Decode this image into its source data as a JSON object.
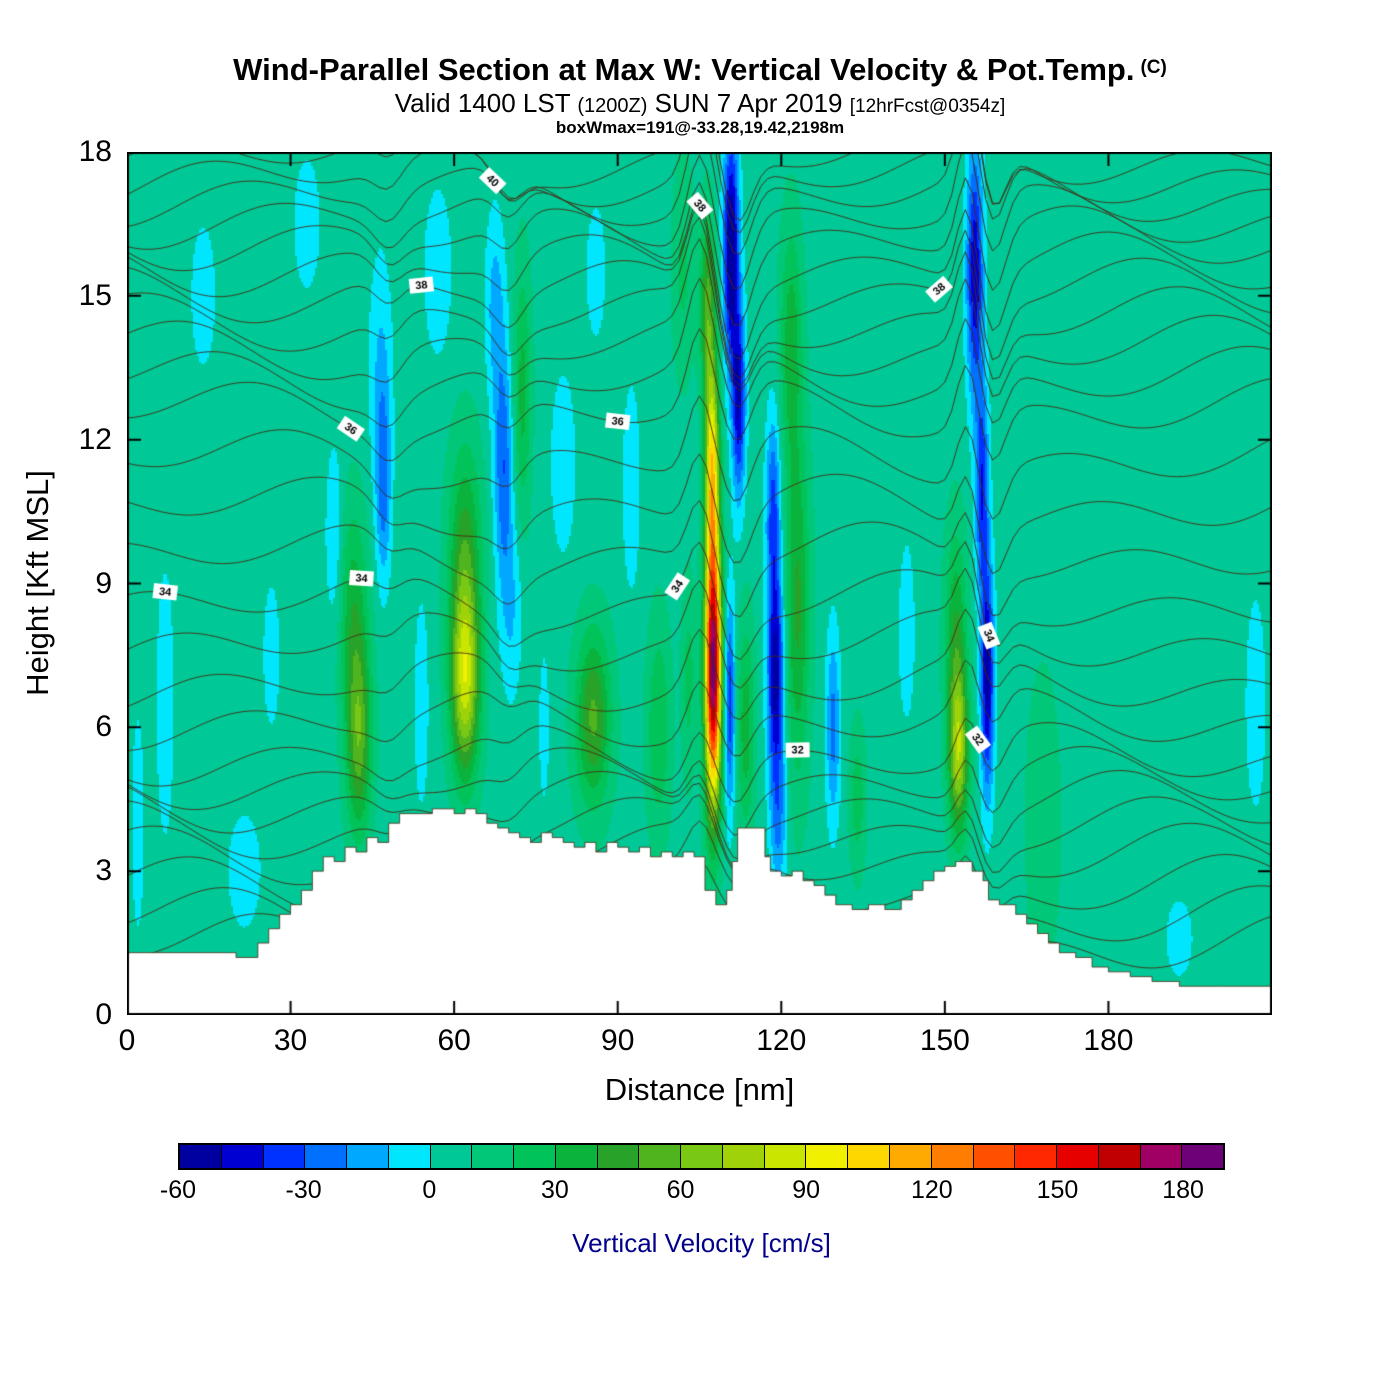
{
  "header": {
    "title": "Wind-Parallel Section at Max W: Vertical Velocity & Pot.Temp.",
    "title_suffix": "(C)",
    "subtitle_valid": "Valid 1400 LST",
    "subtitle_zulu": "(1200Z)",
    "subtitle_date": "SUN 7 Apr 2019",
    "subtitle_fcst": "[12hrFcst@0354z]",
    "annotation": "boxWmax=191@-33.28,19.42,2198m"
  },
  "axes": {
    "x": {
      "label": "Distance [nm]",
      "min": 0,
      "max": 210,
      "ticks": [
        0,
        30,
        60,
        90,
        120,
        150,
        180
      ]
    },
    "y": {
      "label": "Height [Kft MSL]",
      "min": 0,
      "max": 18,
      "ticks": [
        0,
        3,
        6,
        9,
        12,
        15,
        18
      ]
    }
  },
  "colorbar": {
    "label": "Vertical Velocity [cm/s]",
    "label_color": "#00008b",
    "min": -60,
    "max": 190,
    "step": 10,
    "tick_labels": [
      -60,
      -30,
      0,
      30,
      60,
      90,
      120,
      150,
      180
    ],
    "colors": [
      "#0000a0",
      "#0000d2",
      "#0032ff",
      "#0070ff",
      "#00a8ff",
      "#00e6ff",
      "#00c896",
      "#00c878",
      "#00c35a",
      "#0ab43c",
      "#28a228",
      "#50b41e",
      "#78c814",
      "#a0d20a",
      "#c8e600",
      "#f0f000",
      "#ffd700",
      "#ffaa00",
      "#ff7d00",
      "#ff5000",
      "#ff2800",
      "#e60000",
      "#c00000",
      "#a00064",
      "#6e0078"
    ]
  },
  "chart_data": {
    "type": "heatmap",
    "title": "Wind-Parallel Section at Max W: Vertical Velocity & Pot.Temp. (C)",
    "subtitle": "Valid 1400 LST (1200Z) SUN 7 Apr 2019 [12hrFcst@0354z]",
    "max_w_annotation": "boxWmax=191@-33.28,19.42,2198m",
    "xlabel": "Distance [nm]",
    "ylabel": "Height [Kft MSL]",
    "xlim": [
      0,
      210
    ],
    "ylim": [
      0,
      18
    ],
    "units": "cm/s",
    "fill_interval_cms": 10,
    "field": {
      "base": 6,
      "features": [
        {
          "a": 180,
          "x": 107.5,
          "z": 7.2,
          "sx": 1.5,
          "sz": 2.8
        },
        {
          "a": 90,
          "x": 107.3,
          "z": 11.5,
          "sx": 1.3,
          "sz": 2.2
        },
        {
          "a": 45,
          "x": 106.5,
          "z": 14.8,
          "sx": 1.4,
          "sz": 1.8
        },
        {
          "a": 50,
          "x": 42.5,
          "z": 5.8,
          "sx": 2.3,
          "sz": 2.0
        },
        {
          "a": 28,
          "x": 41.5,
          "z": 8.5,
          "sx": 2.6,
          "sz": 2.2
        },
        {
          "a": 78,
          "x": 62,
          "z": 7.0,
          "sx": 2.6,
          "sz": 2.0
        },
        {
          "a": 35,
          "x": 62,
          "z": 9.8,
          "sx": 3.0,
          "sz": 2.2
        },
        {
          "a": 46,
          "x": 85.5,
          "z": 6.2,
          "sx": 3.2,
          "sz": 1.8
        },
        {
          "a": 24,
          "x": 97.5,
          "z": 6.0,
          "sx": 2.2,
          "sz": 2.2
        },
        {
          "a": 18,
          "x": 103,
          "z": 7.0,
          "sx": 1.3,
          "sz": 2.0
        },
        {
          "a": 30,
          "x": 113.5,
          "z": 6.0,
          "sx": 1.6,
          "sz": 2.2
        },
        {
          "a": 36,
          "x": 123,
          "z": 8.5,
          "sx": 2.2,
          "sz": 3.5
        },
        {
          "a": 30,
          "x": 121.8,
          "z": 14.0,
          "sx": 2.0,
          "sz": 2.5
        },
        {
          "a": 68,
          "x": 152.5,
          "z": 5.5,
          "sx": 1.8,
          "sz": 1.7
        },
        {
          "a": 32,
          "x": 152,
          "z": 8.0,
          "sx": 2.0,
          "sz": 2.2
        },
        {
          "a": 28,
          "x": 72.5,
          "z": 13.0,
          "sx": 1.6,
          "sz": 2.6
        },
        {
          "a": 16,
          "x": 102,
          "z": 15.5,
          "sx": 2.0,
          "sz": 2.2
        },
        {
          "a": 14,
          "x": 168,
          "z": 4.0,
          "sx": 3.0,
          "sz": 3.0
        },
        {
          "a": 20,
          "x": 134,
          "z": 4.5,
          "sx": 1.5,
          "sz": 1.5
        },
        {
          "a": -70,
          "x": 110.8,
          "z": 16.0,
          "sx": 1.4,
          "sz": 2.4
        },
        {
          "a": -55,
          "x": 112.2,
          "z": 12.8,
          "sx": 1.2,
          "sz": 2.0
        },
        {
          "a": -45,
          "x": 110.5,
          "z": 6.5,
          "sx": 1.0,
          "sz": 2.2
        },
        {
          "a": -62,
          "x": 119,
          "z": 7.0,
          "sx": 1.5,
          "sz": 2.2
        },
        {
          "a": -40,
          "x": 118.5,
          "z": 10.5,
          "sx": 1.3,
          "sz": 2.0
        },
        {
          "a": -25,
          "x": 119.5,
          "z": 4.0,
          "sx": 1.5,
          "sz": 1.5
        },
        {
          "a": -55,
          "x": 155.5,
          "z": 15.5,
          "sx": 1.5,
          "sz": 2.6
        },
        {
          "a": -45,
          "x": 156.8,
          "z": 11.0,
          "sx": 1.2,
          "sz": 2.2
        },
        {
          "a": -60,
          "x": 157.8,
          "z": 7.0,
          "sx": 1.2,
          "sz": 2.4
        },
        {
          "a": -35,
          "x": 69,
          "z": 11.5,
          "sx": 1.7,
          "sz": 2.4
        },
        {
          "a": -20,
          "x": 67.5,
          "z": 14.8,
          "sx": 1.8,
          "sz": 2.0
        },
        {
          "a": -16,
          "x": 70.5,
          "z": 8.5,
          "sx": 2.0,
          "sz": 2.0
        },
        {
          "a": -30,
          "x": 47,
          "z": 11.0,
          "sx": 1.4,
          "sz": 2.0
        },
        {
          "a": -16,
          "x": 46.5,
          "z": 13.5,
          "sx": 2.2,
          "sz": 2.5
        },
        {
          "a": -15,
          "x": 57,
          "z": 15.5,
          "sx": 2.6,
          "sz": 1.8
        },
        {
          "a": -14,
          "x": 80,
          "z": 11.5,
          "sx": 2.4,
          "sz": 2.0
        },
        {
          "a": -13,
          "x": 92.5,
          "z": 11.0,
          "sx": 1.8,
          "sz": 2.4
        },
        {
          "a": -30,
          "x": 129.5,
          "z": 6.0,
          "sx": 1.3,
          "sz": 2.0
        },
        {
          "a": -12,
          "x": 21.5,
          "z": 3.0,
          "sx": 3.5,
          "sz": 1.4
        },
        {
          "a": -11,
          "x": 7,
          "z": 6.5,
          "sx": 2.0,
          "sz": 3.5
        },
        {
          "a": -10,
          "x": 2,
          "z": 4.0,
          "sx": 1.5,
          "sz": 3.0
        },
        {
          "a": -10,
          "x": 26.5,
          "z": 7.5,
          "sx": 2.0,
          "sz": 2.0
        },
        {
          "a": -12,
          "x": 33,
          "z": 16.5,
          "sx": 2.8,
          "sz": 1.6
        },
        {
          "a": -10,
          "x": 14,
          "z": 15.0,
          "sx": 3.0,
          "sz": 2.0
        },
        {
          "a": -18,
          "x": 38,
          "z": 10.0,
          "sx": 1.5,
          "sz": 1.8
        },
        {
          "a": -12,
          "x": 54,
          "z": 6.5,
          "sx": 1.5,
          "sz": 2.5
        },
        {
          "a": -10,
          "x": 76.5,
          "z": 6.0,
          "sx": 1.2,
          "sz": 2.0
        },
        {
          "a": -12,
          "x": 86,
          "z": 15.5,
          "sx": 2.0,
          "sz": 1.6
        },
        {
          "a": -11,
          "x": 193,
          "z": 1.6,
          "sx": 3.0,
          "sz": 1.0
        },
        {
          "a": -10,
          "x": 207,
          "z": 6.5,
          "sx": 2.5,
          "sz": 3.0
        },
        {
          "a": -10,
          "x": 143,
          "z": 8.0,
          "sx": 2.0,
          "sz": 2.5
        }
      ]
    },
    "terrain_profile_kft": [
      [
        0,
        1.3
      ],
      [
        18,
        1.3
      ],
      [
        20,
        1.2
      ],
      [
        24,
        1.5
      ],
      [
        26,
        1.8
      ],
      [
        28,
        2.1
      ],
      [
        30,
        2.3
      ],
      [
        32,
        2.6
      ],
      [
        34,
        3.0
      ],
      [
        36,
        3.3
      ],
      [
        38,
        3.2
      ],
      [
        40,
        3.5
      ],
      [
        42,
        3.4
      ],
      [
        44,
        3.7
      ],
      [
        46,
        3.6
      ],
      [
        48,
        4.0
      ],
      [
        50,
        4.2
      ],
      [
        54,
        4.2
      ],
      [
        56,
        4.3
      ],
      [
        60,
        4.2
      ],
      [
        62,
        4.3
      ],
      [
        64,
        4.2
      ],
      [
        66,
        4.0
      ],
      [
        68,
        3.9
      ],
      [
        70,
        3.8
      ],
      [
        72,
        3.7
      ],
      [
        74,
        3.6
      ],
      [
        76,
        3.8
      ],
      [
        78,
        3.7
      ],
      [
        80,
        3.6
      ],
      [
        82,
        3.5
      ],
      [
        84,
        3.6
      ],
      [
        86,
        3.4
      ],
      [
        88,
        3.6
      ],
      [
        90,
        3.5
      ],
      [
        92,
        3.4
      ],
      [
        94,
        3.5
      ],
      [
        96,
        3.3
      ],
      [
        98,
        3.4
      ],
      [
        100,
        3.3
      ],
      [
        102,
        3.4
      ],
      [
        104,
        3.3
      ],
      [
        106,
        2.6
      ],
      [
        108,
        2.3
      ],
      [
        110,
        2.6
      ],
      [
        111,
        3.2
      ],
      [
        112,
        3.9
      ],
      [
        116,
        3.9
      ],
      [
        117,
        3.3
      ],
      [
        118,
        3.0
      ],
      [
        120,
        2.9
      ],
      [
        122,
        3.0
      ],
      [
        124,
        2.8
      ],
      [
        126,
        2.7
      ],
      [
        128,
        2.5
      ],
      [
        130,
        2.3
      ],
      [
        133,
        2.2
      ],
      [
        136,
        2.3
      ],
      [
        139,
        2.2
      ],
      [
        142,
        2.4
      ],
      [
        144,
        2.6
      ],
      [
        146,
        2.8
      ],
      [
        148,
        3.0
      ],
      [
        150,
        3.1
      ],
      [
        152,
        3.2
      ],
      [
        155,
        3.0
      ],
      [
        157,
        2.8
      ],
      [
        158,
        2.4
      ],
      [
        160,
        2.3
      ],
      [
        163,
        2.1
      ],
      [
        165,
        1.9
      ],
      [
        167,
        1.7
      ],
      [
        169,
        1.5
      ],
      [
        171,
        1.3
      ],
      [
        174,
        1.2
      ],
      [
        177,
        1.0
      ],
      [
        180,
        0.9
      ],
      [
        184,
        0.8
      ],
      [
        188,
        0.7
      ],
      [
        193,
        0.6
      ],
      [
        200,
        0.6
      ],
      [
        210,
        0.6
      ]
    ],
    "isentropes": {
      "units": "C",
      "labeled_values": [
        32,
        34,
        36,
        38,
        40
      ],
      "interval": 0.5,
      "min": 28.5,
      "max": 41,
      "base_heights": [
        [
          28,
          0.9
        ],
        [
          29,
          2.0
        ],
        [
          30,
          3.3
        ],
        [
          31,
          4.4
        ],
        [
          32,
          5.4
        ],
        [
          33,
          6.9
        ],
        [
          34,
          8.6
        ],
        [
          35,
          10.6
        ],
        [
          36,
          12.6
        ],
        [
          37,
          13.9
        ],
        [
          38,
          15.1
        ],
        [
          39,
          16.2
        ],
        [
          40,
          17.1
        ],
        [
          41,
          17.9
        ]
      ],
      "wave_features": [
        {
          "x": 105,
          "a": 1.8,
          "s": 3.0
        },
        {
          "x": 112,
          "a": -1.4,
          "s": 3.5
        },
        {
          "x": 154,
          "a": 1.5,
          "s": 2.5
        },
        {
          "x": 159,
          "a": -1.2,
          "s": 3.0
        },
        {
          "x": 70,
          "a": -0.6,
          "s": 3.5
        },
        {
          "x": 48,
          "a": -0.5,
          "s": 3.5
        }
      ],
      "labels": [
        {
          "v": 40,
          "x": 67
        },
        {
          "v": 40,
          "x": 154
        },
        {
          "v": 38,
          "x": 54
        },
        {
          "v": 38,
          "x": 105
        },
        {
          "v": 38,
          "x": 149
        },
        {
          "v": 36,
          "x": 41
        },
        {
          "v": 36,
          "x": 90
        },
        {
          "v": 34,
          "x": 7
        },
        {
          "v": 34,
          "x": 43
        },
        {
          "v": 34,
          "x": 101
        },
        {
          "v": 34,
          "x": 158
        },
        {
          "v": 32,
          "x": 123
        },
        {
          "v": 32,
          "x": 156
        }
      ]
    }
  }
}
